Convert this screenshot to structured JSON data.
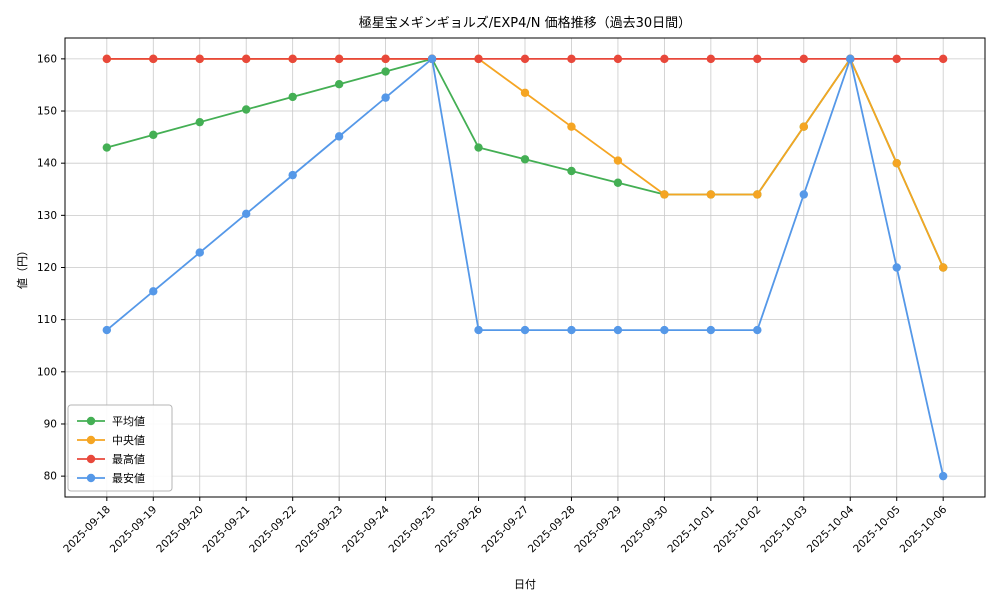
{
  "chart_data": {
    "type": "line",
    "title": "極星宝メギンギョルズ/EXP4/N 価格推移（過去30日間）",
    "xlabel": "日付",
    "ylabel": "値（円）",
    "x": [
      "2025-09-18",
      "2025-09-19",
      "2025-09-20",
      "2025-09-21",
      "2025-09-22",
      "2025-09-23",
      "2025-09-24",
      "2025-09-25",
      "2025-09-26",
      "2025-09-27",
      "2025-09-28",
      "2025-09-29",
      "2025-09-30",
      "2025-10-01",
      "2025-10-02",
      "2025-10-03",
      "2025-10-04",
      "2025-10-05",
      "2025-10-06"
    ],
    "series": [
      {
        "name": "平均値",
        "color": "#44af54",
        "values": [
          143,
          145.43,
          147.86,
          150.29,
          152.71,
          155.14,
          157.57,
          160,
          143,
          140.75,
          138.5,
          136.25,
          134,
          134,
          134,
          147,
          160,
          140,
          120
        ]
      },
      {
        "name": "中央値",
        "color": "#f5a523",
        "values": [
          160,
          160,
          160,
          160,
          160,
          160,
          160,
          160,
          160,
          153.5,
          147,
          140.5,
          134,
          134,
          134,
          147,
          160,
          140,
          120
        ]
      },
      {
        "name": "最高値",
        "color": "#e8483b",
        "values": [
          160,
          160,
          160,
          160,
          160,
          160,
          160,
          160,
          160,
          160,
          160,
          160,
          160,
          160,
          160,
          160,
          160,
          160,
          160
        ]
      },
      {
        "name": "最安値",
        "color": "#5598e8",
        "values": [
          108,
          115.43,
          122.86,
          130.29,
          137.71,
          145.14,
          152.57,
          160,
          108,
          108,
          108,
          108,
          108,
          108,
          108,
          134,
          160,
          120,
          80
        ]
      }
    ],
    "ylim": [
      76,
      164
    ],
    "yticks": [
      80,
      90,
      100,
      110,
      120,
      130,
      140,
      150,
      160
    ],
    "grid": true,
    "legend_position": "lower left",
    "axis_color": "#000000",
    "grid_color": "#c9c9c9"
  }
}
